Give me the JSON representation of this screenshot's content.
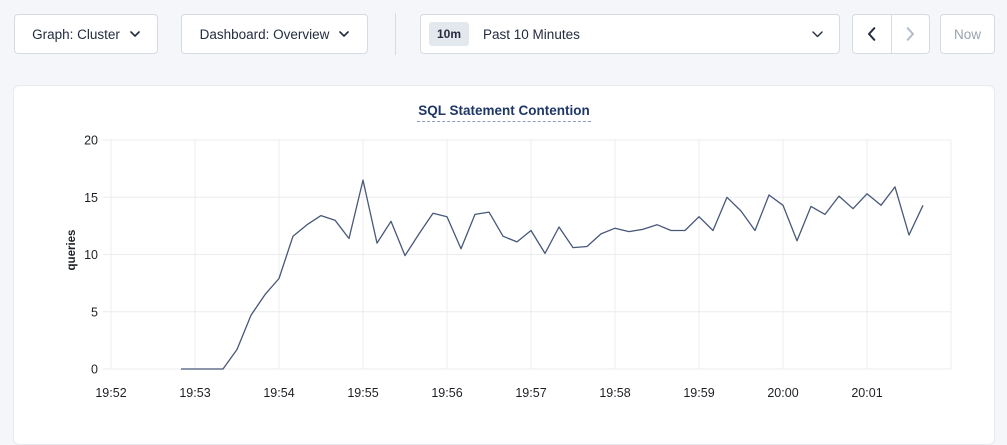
{
  "colors": {
    "page_background": "#f4f6fa",
    "card_background": "#ffffff",
    "accent_navy": "#1f3767",
    "text_dark": "#242c3f",
    "disabled_text": "#9aa3b0",
    "grid": "#ececef",
    "line": "#475878"
  },
  "icons": {
    "dropdown": "chevron-down",
    "time_range": "chevron-down",
    "prev": "chevron-left",
    "next": "chevron-right"
  },
  "toolbar": {
    "graph_dropdown_label": "Graph: Cluster",
    "dashboard_dropdown_label": "Dashboard: Overview",
    "time_range_badge": "10m",
    "time_range_label": "Past 10 Minutes",
    "now_button_label": "Now"
  },
  "chart_data": {
    "type": "line",
    "title": "SQL Statement Contention",
    "xlabel": "",
    "ylabel": "queries",
    "ylim": [
      0,
      20
    ],
    "y_ticks": [
      0,
      5,
      10,
      15,
      20
    ],
    "x_ticks": [
      "19:52",
      "19:53",
      "19:54",
      "19:55",
      "19:56",
      "19:57",
      "19:58",
      "19:59",
      "20:00",
      "20:01"
    ],
    "grid": true,
    "legend_position": "none",
    "series": [
      {
        "name": "queries",
        "points": [
          [
            "19:52:50",
            0
          ],
          [
            "19:53:00",
            0
          ],
          [
            "19:53:10",
            0
          ],
          [
            "19:53:20",
            0
          ],
          [
            "19:53:30",
            1.7
          ],
          [
            "19:53:40",
            4.7
          ],
          [
            "19:53:50",
            6.5
          ],
          [
            "19:54:00",
            7.9
          ],
          [
            "19:54:10",
            11.6
          ],
          [
            "19:54:20",
            12.6
          ],
          [
            "19:54:30",
            13.4
          ],
          [
            "19:54:40",
            13.0
          ],
          [
            "19:54:50",
            11.4
          ],
          [
            "19:55:00",
            16.5
          ],
          [
            "19:55:10",
            11.0
          ],
          [
            "19:55:20",
            12.9
          ],
          [
            "19:55:30",
            9.9
          ],
          [
            "19:55:40",
            11.8
          ],
          [
            "19:55:50",
            13.6
          ],
          [
            "19:56:00",
            13.3
          ],
          [
            "19:56:10",
            10.5
          ],
          [
            "19:56:20",
            13.5
          ],
          [
            "19:56:30",
            13.7
          ],
          [
            "19:56:40",
            11.6
          ],
          [
            "19:56:50",
            11.1
          ],
          [
            "19:57:00",
            12.1
          ],
          [
            "19:57:10",
            10.1
          ],
          [
            "19:57:20",
            12.4
          ],
          [
            "19:57:30",
            10.6
          ],
          [
            "19:57:40",
            10.7
          ],
          [
            "19:57:50",
            11.8
          ],
          [
            "19:58:00",
            12.3
          ],
          [
            "19:58:10",
            12.0
          ],
          [
            "19:58:20",
            12.2
          ],
          [
            "19:58:30",
            12.6
          ],
          [
            "19:58:40",
            12.1
          ],
          [
            "19:58:50",
            12.1
          ],
          [
            "19:59:00",
            13.3
          ],
          [
            "19:59:10",
            12.1
          ],
          [
            "19:59:20",
            15.0
          ],
          [
            "19:59:30",
            13.8
          ],
          [
            "19:59:40",
            12.1
          ],
          [
            "19:59:50",
            15.2
          ],
          [
            "20:00:00",
            14.3
          ],
          [
            "20:00:10",
            11.2
          ],
          [
            "20:00:20",
            14.2
          ],
          [
            "20:00:30",
            13.5
          ],
          [
            "20:00:40",
            15.1
          ],
          [
            "20:00:50",
            14.0
          ],
          [
            "20:01:00",
            15.3
          ],
          [
            "20:01:10",
            14.3
          ],
          [
            "20:01:20",
            15.9
          ],
          [
            "20:01:30",
            11.7
          ],
          [
            "20:01:40",
            14.3
          ]
        ]
      }
    ]
  }
}
